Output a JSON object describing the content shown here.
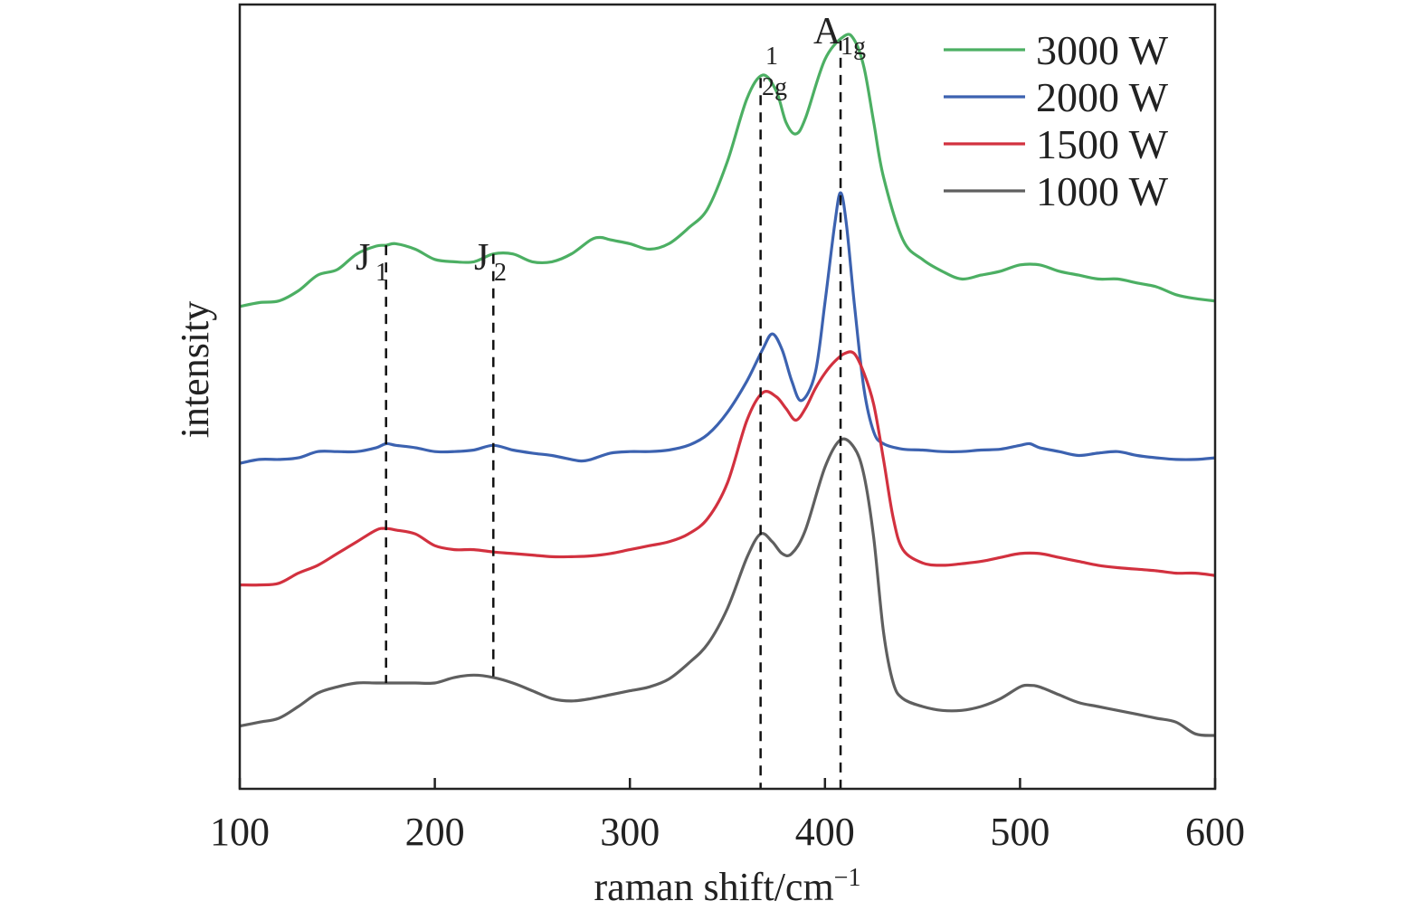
{
  "chart_data": {
    "type": "line",
    "xlabel": "raman shift/cm",
    "xlabel_sup": "−1",
    "ylabel": "intensity",
    "xlim": [
      100,
      600
    ],
    "ylim": [
      0,
      10
    ],
    "xticks": [
      100,
      200,
      300,
      400,
      500,
      600
    ],
    "grid": false,
    "legend_position": "top-right",
    "series": [
      {
        "name": "3000 W",
        "color": "#4caf63",
        "points": [
          [
            100,
            6.15
          ],
          [
            110,
            6.2
          ],
          [
            120,
            6.22
          ],
          [
            130,
            6.35
          ],
          [
            140,
            6.55
          ],
          [
            150,
            6.62
          ],
          [
            160,
            6.82
          ],
          [
            170,
            6.92
          ],
          [
            175,
            6.93
          ],
          [
            180,
            6.95
          ],
          [
            190,
            6.88
          ],
          [
            200,
            6.75
          ],
          [
            210,
            6.72
          ],
          [
            220,
            6.72
          ],
          [
            230,
            6.82
          ],
          [
            240,
            6.82
          ],
          [
            250,
            6.72
          ],
          [
            260,
            6.72
          ],
          [
            270,
            6.82
          ],
          [
            280,
            7.0
          ],
          [
            285,
            7.03
          ],
          [
            290,
            7.0
          ],
          [
            300,
            6.95
          ],
          [
            310,
            6.88
          ],
          [
            320,
            6.95
          ],
          [
            330,
            7.15
          ],
          [
            340,
            7.4
          ],
          [
            350,
            8.0
          ],
          [
            360,
            8.8
          ],
          [
            368,
            9.1
          ],
          [
            375,
            8.9
          ],
          [
            380,
            8.5
          ],
          [
            385,
            8.35
          ],
          [
            390,
            8.55
          ],
          [
            400,
            9.3
          ],
          [
            410,
            9.6
          ],
          [
            415,
            9.55
          ],
          [
            420,
            9.2
          ],
          [
            425,
            8.5
          ],
          [
            430,
            7.8
          ],
          [
            440,
            7.0
          ],
          [
            450,
            6.75
          ],
          [
            460,
            6.6
          ],
          [
            470,
            6.5
          ],
          [
            480,
            6.55
          ],
          [
            490,
            6.6
          ],
          [
            500,
            6.68
          ],
          [
            510,
            6.68
          ],
          [
            520,
            6.6
          ],
          [
            530,
            6.55
          ],
          [
            540,
            6.5
          ],
          [
            550,
            6.5
          ],
          [
            560,
            6.45
          ],
          [
            570,
            6.4
          ],
          [
            580,
            6.3
          ],
          [
            590,
            6.25
          ],
          [
            600,
            6.22
          ]
        ]
      },
      {
        "name": "2000 W",
        "color": "#3c62b0",
        "points": [
          [
            100,
            4.15
          ],
          [
            110,
            4.2
          ],
          [
            120,
            4.2
          ],
          [
            130,
            4.22
          ],
          [
            140,
            4.3
          ],
          [
            150,
            4.3
          ],
          [
            160,
            4.3
          ],
          [
            170,
            4.35
          ],
          [
            175,
            4.4
          ],
          [
            180,
            4.38
          ],
          [
            190,
            4.35
          ],
          [
            200,
            4.3
          ],
          [
            210,
            4.3
          ],
          [
            220,
            4.32
          ],
          [
            230,
            4.38
          ],
          [
            240,
            4.32
          ],
          [
            250,
            4.28
          ],
          [
            260,
            4.25
          ],
          [
            270,
            4.2
          ],
          [
            275,
            4.18
          ],
          [
            280,
            4.2
          ],
          [
            290,
            4.28
          ],
          [
            300,
            4.3
          ],
          [
            310,
            4.3
          ],
          [
            320,
            4.32
          ],
          [
            330,
            4.38
          ],
          [
            340,
            4.52
          ],
          [
            350,
            4.8
          ],
          [
            360,
            5.2
          ],
          [
            368,
            5.6
          ],
          [
            373,
            5.8
          ],
          [
            378,
            5.6
          ],
          [
            383,
            5.2
          ],
          [
            388,
            4.95
          ],
          [
            395,
            5.3
          ],
          [
            400,
            6.2
          ],
          [
            405,
            7.2
          ],
          [
            408,
            7.6
          ],
          [
            411,
            7.2
          ],
          [
            415,
            6.2
          ],
          [
            420,
            5.1
          ],
          [
            425,
            4.55
          ],
          [
            430,
            4.4
          ],
          [
            440,
            4.33
          ],
          [
            450,
            4.32
          ],
          [
            460,
            4.3
          ],
          [
            470,
            4.3
          ],
          [
            480,
            4.32
          ],
          [
            490,
            4.33
          ],
          [
            500,
            4.38
          ],
          [
            505,
            4.4
          ],
          [
            510,
            4.35
          ],
          [
            520,
            4.3
          ],
          [
            530,
            4.25
          ],
          [
            540,
            4.28
          ],
          [
            550,
            4.3
          ],
          [
            560,
            4.25
          ],
          [
            570,
            4.22
          ],
          [
            580,
            4.2
          ],
          [
            590,
            4.2
          ],
          [
            600,
            4.22
          ]
        ]
      },
      {
        "name": "1500 W",
        "color": "#d2313f",
        "points": [
          [
            100,
            2.6
          ],
          [
            110,
            2.6
          ],
          [
            120,
            2.62
          ],
          [
            130,
            2.75
          ],
          [
            140,
            2.85
          ],
          [
            150,
            3.0
          ],
          [
            160,
            3.15
          ],
          [
            170,
            3.3
          ],
          [
            175,
            3.32
          ],
          [
            180,
            3.3
          ],
          [
            190,
            3.25
          ],
          [
            200,
            3.1
          ],
          [
            210,
            3.05
          ],
          [
            220,
            3.05
          ],
          [
            230,
            3.02
          ],
          [
            240,
            3.0
          ],
          [
            250,
            2.98
          ],
          [
            260,
            2.96
          ],
          [
            270,
            2.96
          ],
          [
            280,
            2.97
          ],
          [
            290,
            3.0
          ],
          [
            300,
            3.05
          ],
          [
            310,
            3.1
          ],
          [
            320,
            3.15
          ],
          [
            330,
            3.25
          ],
          [
            340,
            3.45
          ],
          [
            350,
            3.9
          ],
          [
            360,
            4.7
          ],
          [
            368,
            5.05
          ],
          [
            375,
            5.0
          ],
          [
            380,
            4.85
          ],
          [
            385,
            4.7
          ],
          [
            390,
            4.85
          ],
          [
            395,
            5.1
          ],
          [
            400,
            5.3
          ],
          [
            405,
            5.45
          ],
          [
            410,
            5.55
          ],
          [
            415,
            5.55
          ],
          [
            420,
            5.3
          ],
          [
            425,
            4.9
          ],
          [
            430,
            4.2
          ],
          [
            435,
            3.45
          ],
          [
            440,
            3.05
          ],
          [
            450,
            2.88
          ],
          [
            460,
            2.85
          ],
          [
            470,
            2.87
          ],
          [
            480,
            2.9
          ],
          [
            490,
            2.95
          ],
          [
            500,
            3.0
          ],
          [
            510,
            3.0
          ],
          [
            520,
            2.95
          ],
          [
            530,
            2.9
          ],
          [
            540,
            2.85
          ],
          [
            550,
            2.82
          ],
          [
            560,
            2.8
          ],
          [
            570,
            2.78
          ],
          [
            580,
            2.75
          ],
          [
            590,
            2.75
          ],
          [
            600,
            2.72
          ]
        ]
      },
      {
        "name": "1000 W",
        "color": "#5f5f5f",
        "points": [
          [
            100,
            0.8
          ],
          [
            110,
            0.85
          ],
          [
            120,
            0.9
          ],
          [
            130,
            1.05
          ],
          [
            140,
            1.22
          ],
          [
            150,
            1.3
          ],
          [
            160,
            1.35
          ],
          [
            170,
            1.35
          ],
          [
            180,
            1.35
          ],
          [
            190,
            1.35
          ],
          [
            200,
            1.35
          ],
          [
            210,
            1.42
          ],
          [
            220,
            1.45
          ],
          [
            230,
            1.42
          ],
          [
            240,
            1.35
          ],
          [
            250,
            1.25
          ],
          [
            260,
            1.15
          ],
          [
            270,
            1.12
          ],
          [
            280,
            1.15
          ],
          [
            290,
            1.2
          ],
          [
            300,
            1.25
          ],
          [
            310,
            1.3
          ],
          [
            320,
            1.4
          ],
          [
            330,
            1.6
          ],
          [
            340,
            1.85
          ],
          [
            350,
            2.3
          ],
          [
            360,
            2.95
          ],
          [
            367,
            3.25
          ],
          [
            373,
            3.15
          ],
          [
            378,
            3.0
          ],
          [
            383,
            3.0
          ],
          [
            390,
            3.3
          ],
          [
            400,
            4.1
          ],
          [
            408,
            4.45
          ],
          [
            415,
            4.35
          ],
          [
            420,
            4.0
          ],
          [
            425,
            3.2
          ],
          [
            430,
            2.0
          ],
          [
            435,
            1.35
          ],
          [
            440,
            1.15
          ],
          [
            450,
            1.05
          ],
          [
            460,
            1.0
          ],
          [
            470,
            1.0
          ],
          [
            480,
            1.05
          ],
          [
            490,
            1.15
          ],
          [
            500,
            1.3
          ],
          [
            505,
            1.32
          ],
          [
            510,
            1.3
          ],
          [
            520,
            1.2
          ],
          [
            530,
            1.1
          ],
          [
            540,
            1.05
          ],
          [
            550,
            1.0
          ],
          [
            560,
            0.95
          ],
          [
            570,
            0.9
          ],
          [
            580,
            0.85
          ],
          [
            590,
            0.7
          ],
          [
            600,
            0.68
          ]
        ]
      }
    ],
    "annotations": [
      {
        "main": "J",
        "sub": "1",
        "x": 175
      },
      {
        "main": "J",
        "sub": "2",
        "x": 230
      },
      {
        "main": "",
        "sup": "1",
        "sub": "2g",
        "x": 367
      },
      {
        "main": "A",
        "sub": "1g",
        "x": 408
      }
    ]
  }
}
